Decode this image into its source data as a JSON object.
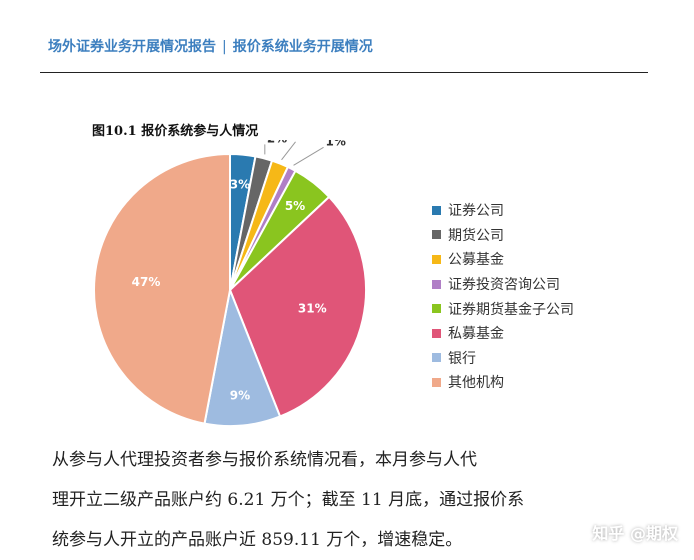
{
  "header": {
    "left": "场外证券业务开展情况报告",
    "separator": "|",
    "right": "报价系统业务开展情况"
  },
  "figure": {
    "title": "图10.1 报价系统参与人情况"
  },
  "chart_data": {
    "type": "pie",
    "title": "图10.1 报价系统参与人情况",
    "legend_position": "right",
    "slices": [
      {
        "label": "证券公司",
        "value": 3,
        "text": "3%",
        "color": "#2a7ab0"
      },
      {
        "label": "期货公司",
        "value": 2,
        "text": "2%",
        "color": "#666666"
      },
      {
        "label": "公募基金",
        "value": 2,
        "text": "2%",
        "color": "#f6b817"
      },
      {
        "label": "证券投资咨询公司",
        "value": 1,
        "text": "1%",
        "color": "#b07fc6"
      },
      {
        "label": "证券期货基金子公司",
        "value": 5,
        "text": "5%",
        "color": "#8ac51f"
      },
      {
        "label": "私募基金",
        "value": 31,
        "text": "31%",
        "color": "#e05578"
      },
      {
        "label": "银行",
        "value": 9,
        "text": "9%",
        "color": "#9ebbe0"
      },
      {
        "label": "其他机构",
        "value": 47,
        "text": "47%",
        "color": "#f0a98a"
      }
    ]
  },
  "paragraph": {
    "lines": [
      "从参与人代理投资者参与报价系统情况看，本月参与人代",
      "理开立二级产品账户约 6.21 万个；截至 11 月底，通过报价系",
      "统参与人开立的产品账户近 859.11 万个，增速稳定。"
    ]
  },
  "watermark": "知乎 @期权"
}
